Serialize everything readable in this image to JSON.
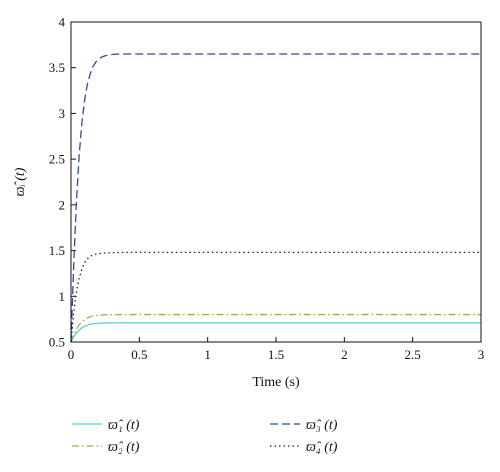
{
  "chart_data": {
    "type": "line",
    "xlabel": "Time (s)",
    "ylabel": "ϖ̂ᵢ (t)",
    "xlim": [
      0,
      3
    ],
    "ylim": [
      0.5,
      4
    ],
    "xticks": [
      0,
      0.5,
      1,
      1.5,
      2,
      2.5,
      3
    ],
    "yticks": [
      0.5,
      1,
      1.5,
      2,
      2.5,
      3,
      3.5,
      4
    ],
    "xtick_labels": [
      "0",
      "0.5",
      "1",
      "1.5",
      "2",
      "2.5",
      "3"
    ],
    "ytick_labels": [
      "0.5",
      "1",
      "1.5",
      "2",
      "2.5",
      "3",
      "3.5",
      "4"
    ],
    "grid": false,
    "legend_position": "bottom",
    "series": [
      {
        "name": "ϖ̂₁ (t)",
        "color": "#5fcfd3",
        "style": "solid",
        "x": [
          0,
          0.02,
          0.04,
          0.06,
          0.08,
          0.1,
          0.13,
          0.16,
          0.2,
          0.25,
          0.3,
          0.4,
          0.6,
          1,
          1.5,
          2,
          2.5,
          3
        ],
        "y": [
          0.5,
          0.56,
          0.6,
          0.63,
          0.655,
          0.673,
          0.69,
          0.7,
          0.705,
          0.708,
          0.709,
          0.71,
          0.71,
          0.71,
          0.71,
          0.71,
          0.71,
          0.71
        ]
      },
      {
        "name": "ϖ̂₂ (t)",
        "color": "#7fbf3f",
        "style": "dashdot",
        "x": [
          0,
          0.02,
          0.04,
          0.06,
          0.08,
          0.1,
          0.13,
          0.16,
          0.2,
          0.25,
          0.3,
          0.4,
          0.6,
          1,
          1.5,
          2,
          2.5,
          3
        ],
        "y": [
          0.5,
          0.58,
          0.64,
          0.69,
          0.72,
          0.745,
          0.77,
          0.785,
          0.793,
          0.797,
          0.799,
          0.8,
          0.8,
          0.8,
          0.8,
          0.8,
          0.8,
          0.8
        ]
      },
      {
        "name": "ϖ̂₃ (t)",
        "color": "#2e4a9b",
        "style": "dashed",
        "x": [
          0,
          0.02,
          0.04,
          0.06,
          0.08,
          0.1,
          0.12,
          0.14,
          0.16,
          0.18,
          0.2,
          0.23,
          0.26,
          0.3,
          0.35,
          0.4,
          0.5,
          0.7,
          1,
          1.5,
          2,
          2.5,
          3
        ],
        "y": [
          0.5,
          1.35,
          2.05,
          2.55,
          2.9,
          3.15,
          3.32,
          3.43,
          3.51,
          3.56,
          3.59,
          3.62,
          3.635,
          3.645,
          3.65,
          3.65,
          3.65,
          3.65,
          3.65,
          3.65,
          3.65,
          3.65,
          3.65
        ]
      },
      {
        "name": "ϖ̂₄ (t)",
        "color": "#222222",
        "style": "dotted",
        "x": [
          0,
          0.02,
          0.04,
          0.06,
          0.08,
          0.1,
          0.12,
          0.15,
          0.18,
          0.22,
          0.27,
          0.32,
          0.4,
          0.6,
          1,
          1.5,
          2,
          2.5,
          3
        ],
        "y": [
          0.5,
          0.82,
          1.05,
          1.2,
          1.3,
          1.37,
          1.41,
          1.445,
          1.46,
          1.47,
          1.475,
          1.478,
          1.48,
          1.48,
          1.48,
          1.48,
          1.48,
          1.48,
          1.48
        ]
      }
    ]
  }
}
